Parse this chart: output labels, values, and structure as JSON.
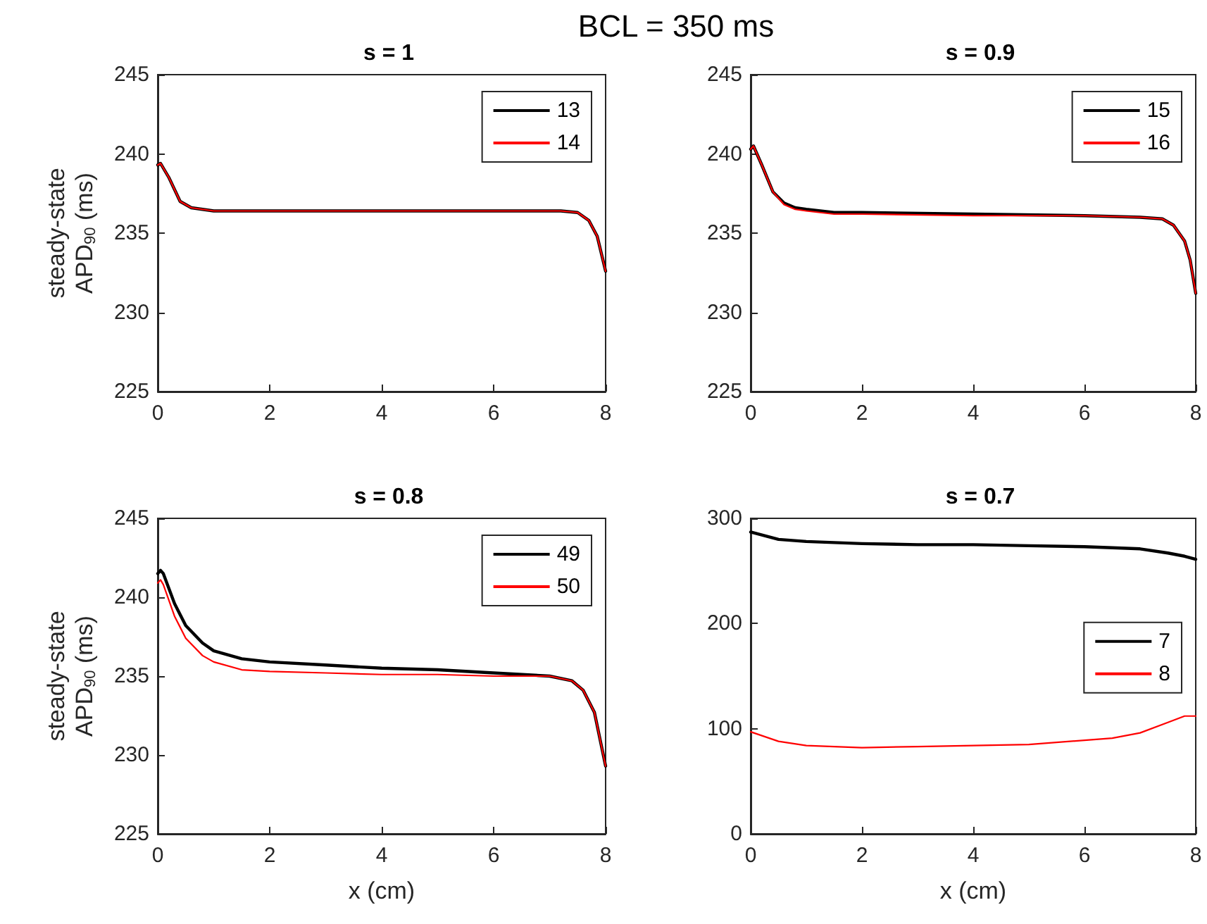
{
  "chart_data": [
    {
      "type": "line",
      "title": "s = 1",
      "ylabel": "steady-state\nAPD$_{90}$ (ms)",
      "annotations": [
        "BCL = 350 ms"
      ],
      "xlim": [
        0,
        8
      ],
      "xticks": [
        0,
        2,
        4,
        6,
        8
      ],
      "ylim": [
        225,
        245
      ],
      "yticks": [
        225,
        230,
        235,
        240,
        245
      ],
      "grid": false,
      "legend": "top right",
      "line_style": "solid",
      "marker": "none",
      "x": [
        0,
        0.05,
        0.2,
        0.4,
        0.6,
        0.8,
        1,
        2,
        4,
        6,
        7.2,
        7.5,
        7.7,
        7.85,
        8
      ],
      "series": [
        {
          "name": "13",
          "color": "#000000",
          "values": [
            239.3,
            239.4,
            238.5,
            237.0,
            236.6,
            236.5,
            236.4,
            236.4,
            236.4,
            236.4,
            236.4,
            236.3,
            235.8,
            234.8,
            232.6
          ]
        },
        {
          "name": "14",
          "color": "#ff0000",
          "values": [
            239.3,
            239.4,
            238.5,
            237.0,
            236.6,
            236.5,
            236.4,
            236.4,
            236.4,
            236.4,
            236.4,
            236.3,
            235.8,
            234.8,
            232.6
          ]
        }
      ]
    },
    {
      "type": "line",
      "title": "s = 0.9",
      "xlim": [
        0,
        8
      ],
      "xticks": [
        0,
        2,
        4,
        6,
        8
      ],
      "ylim": [
        225,
        245
      ],
      "yticks": [
        225,
        230,
        235,
        240,
        245
      ],
      "grid": false,
      "legend": "top right",
      "line_style": "solid",
      "marker": "none",
      "x": [
        0,
        0.05,
        0.2,
        0.4,
        0.6,
        0.8,
        1,
        1.5,
        2,
        4,
        6,
        7,
        7.4,
        7.6,
        7.8,
        7.9,
        8
      ],
      "series": [
        {
          "name": "15",
          "color": "#000000",
          "values": [
            240.3,
            240.5,
            239.3,
            237.6,
            236.9,
            236.6,
            236.5,
            236.3,
            236.3,
            236.2,
            236.1,
            236.0,
            235.9,
            235.5,
            234.5,
            233.3,
            231.2
          ]
        },
        {
          "name": "16",
          "color": "#ff0000",
          "values": [
            240.3,
            240.5,
            239.3,
            237.6,
            236.8,
            236.5,
            236.4,
            236.2,
            236.2,
            236.1,
            236.1,
            236.0,
            235.9,
            235.5,
            234.5,
            233.3,
            231.2
          ]
        }
      ]
    },
    {
      "type": "line",
      "title": "s = 0.8",
      "xlabel": "x (cm)",
      "ylabel": "steady-state\nAPD$_{90}$ (ms)",
      "xlim": [
        0,
        8
      ],
      "xticks": [
        0,
        2,
        4,
        6,
        8
      ],
      "ylim": [
        225,
        245
      ],
      "yticks": [
        225,
        230,
        235,
        240,
        245
      ],
      "grid": false,
      "legend": "top right",
      "line_style": "solid",
      "marker": "none",
      "x": [
        0,
        0.05,
        0.1,
        0.3,
        0.5,
        0.8,
        1,
        1.5,
        2,
        3,
        4,
        5,
        6,
        7,
        7.4,
        7.6,
        7.8,
        8
      ],
      "series": [
        {
          "name": "49",
          "color": "#000000",
          "values": [
            241.5,
            241.7,
            241.5,
            239.6,
            238.2,
            237.1,
            236.6,
            236.1,
            235.9,
            235.7,
            235.5,
            235.4,
            235.2,
            235.0,
            234.7,
            234.1,
            232.7,
            229.3
          ]
        },
        {
          "name": "50",
          "color": "#ff0000",
          "values": [
            240.9,
            241.1,
            240.8,
            238.8,
            237.4,
            236.3,
            235.9,
            235.4,
            235.3,
            235.2,
            235.1,
            235.1,
            235.0,
            235.0,
            234.7,
            234.1,
            232.7,
            229.3
          ]
        }
      ]
    },
    {
      "type": "line",
      "title": "s = 0.7",
      "xlabel": "x (cm)",
      "xlim": [
        0,
        8
      ],
      "xticks": [
        0,
        2,
        4,
        6,
        8
      ],
      "ylim": [
        0,
        300
      ],
      "yticks": [
        0,
        100,
        200,
        300
      ],
      "grid": false,
      "legend": "right",
      "line_style": "solid",
      "marker": "none",
      "x": [
        0,
        0.5,
        1,
        2,
        3,
        4,
        5,
        6,
        6.5,
        7,
        7.5,
        7.8,
        8
      ],
      "series": [
        {
          "name": "7",
          "color": "#000000",
          "values": [
            287,
            280,
            278,
            276,
            275,
            275,
            274,
            273,
            272,
            271,
            267,
            264,
            261
          ]
        },
        {
          "name": "8",
          "color": "#ff0000",
          "values": [
            97,
            88,
            84,
            82,
            83,
            84,
            85,
            89,
            91,
            96,
            106,
            112,
            112
          ]
        }
      ]
    }
  ]
}
